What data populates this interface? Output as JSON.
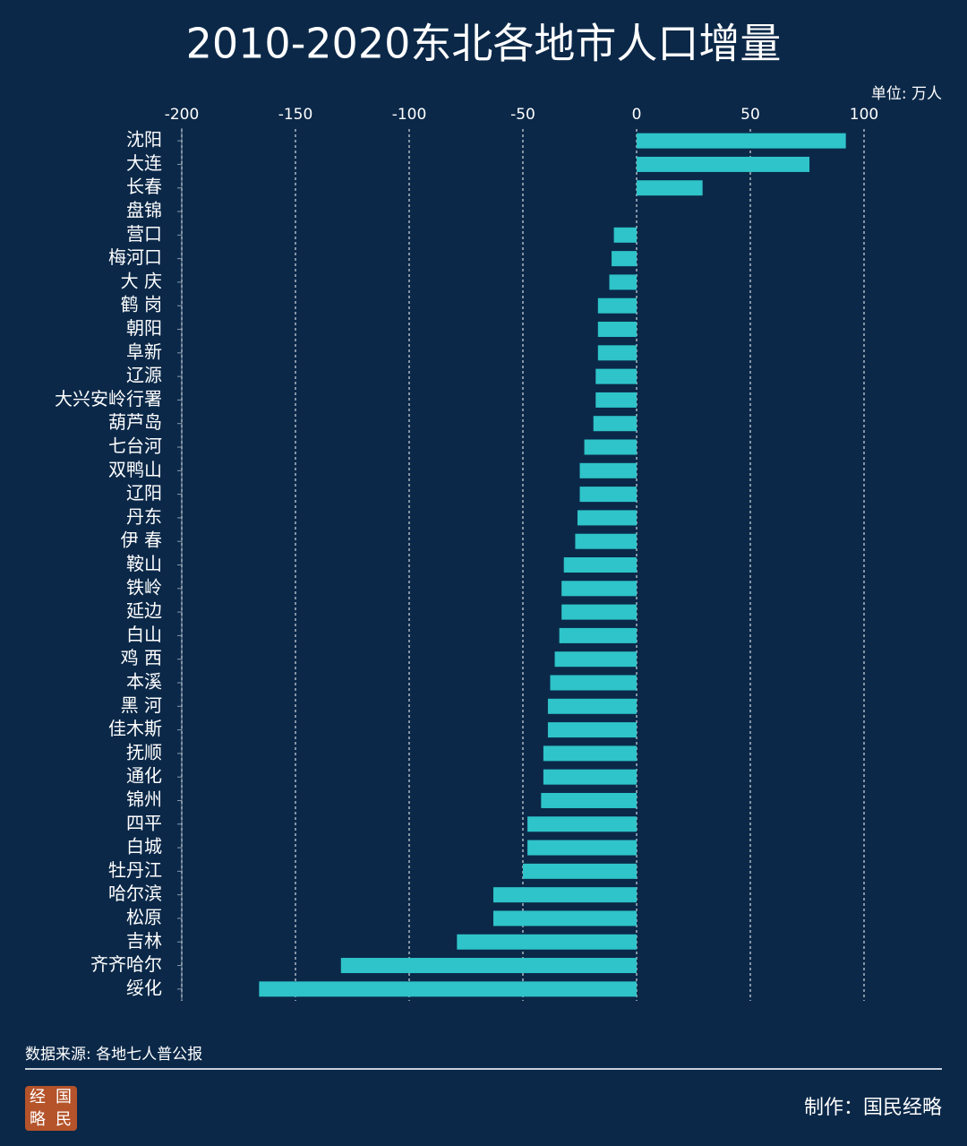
{
  "chart_data": {
    "type": "barh",
    "title": "2010-2020东北各地市人口增量",
    "unit": "单位: 万人",
    "source": "数据来源: 各地七人普公报",
    "credit": "制作：国民经略",
    "logo": [
      "经",
      "国",
      "略",
      "民"
    ],
    "categories": [
      "沈阳",
      "大连",
      "长春",
      "盘锦",
      "营口",
      "梅河口",
      "大 庆",
      "鹤 岗",
      "朝阳",
      "阜新",
      "辽源",
      "大兴安岭行署",
      "葫芦岛",
      "七台河",
      "双鸭山",
      "辽阳",
      "丹东",
      "伊 春",
      "鞍山",
      "铁岭",
      "延边",
      "白山",
      "鸡 西",
      "本溪",
      "黑 河",
      "佳木斯",
      "抚顺",
      "通化",
      "锦州",
      "四平",
      "白城",
      "牡丹江",
      "哈尔滨",
      "松原",
      "吉林",
      "齐齐哈尔",
      "绥化"
    ],
    "values": [
      92,
      76,
      29,
      0,
      -10,
      -11,
      -12,
      -17,
      -17,
      -17,
      -18,
      -18,
      -19,
      -23,
      -25,
      -25,
      -26,
      -27,
      -32,
      -33,
      -33,
      -34,
      -36,
      -38,
      -39,
      -39,
      -41,
      -41,
      -42,
      -48,
      -48,
      -50,
      -63,
      -63,
      -79,
      -130,
      -166
    ],
    "color": "#2ec4c9",
    "xlim": [
      -200,
      100
    ],
    "xticks": [
      -200,
      -150,
      -100,
      -50,
      0,
      50,
      100
    ],
    "grid": true
  }
}
